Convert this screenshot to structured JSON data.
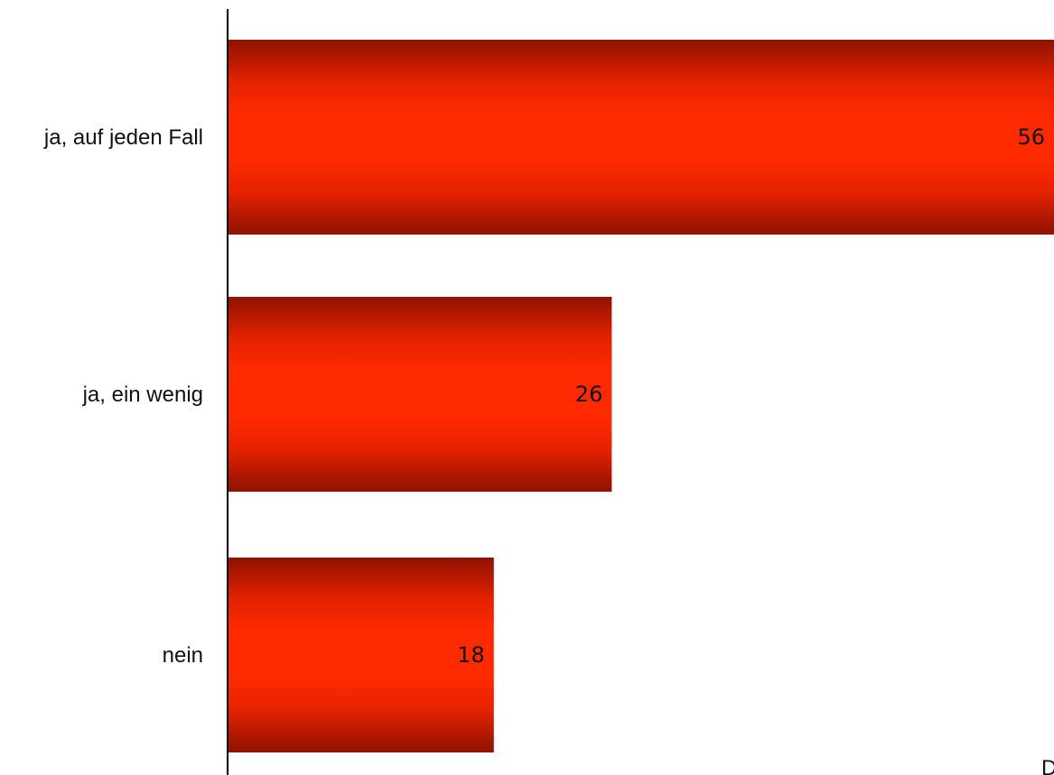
{
  "chart_data": {
    "type": "bar",
    "orientation": "horizontal",
    "categories": [
      "ja, auf jeden Fall",
      "ja, ein wenig",
      "nein"
    ],
    "values": [
      56,
      26,
      18
    ],
    "title": "",
    "xlabel": "",
    "ylabel": "",
    "xlim": [
      0,
      56
    ],
    "grid": false,
    "legend": "none",
    "data_labels": true,
    "bar_color": "#ff2a00",
    "bar_edge_color": "#8f1200",
    "corner_text": "D"
  }
}
